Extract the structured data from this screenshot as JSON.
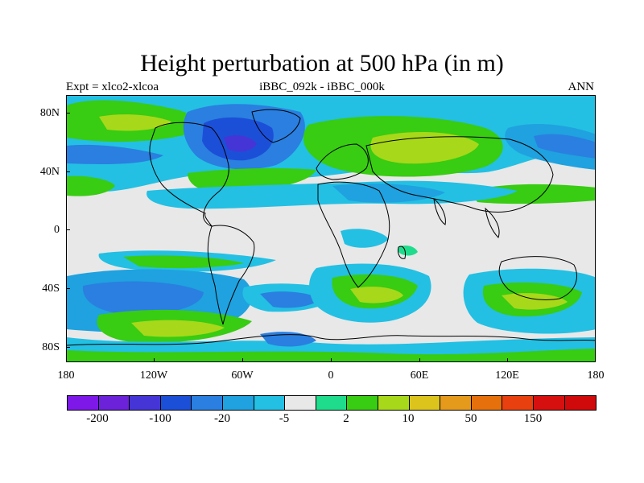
{
  "title": "Height perturbation at 500 hPa (in m)",
  "subtitle": {
    "left": "Expt = xlco2-xlcoa",
    "center": "iBBC_092k - iBBC_000k",
    "right": "ANN"
  },
  "axes": {
    "lat_labels": [
      "80N",
      "40N",
      "0",
      "40S",
      "80S"
    ],
    "lon_labels": [
      "180",
      "120W",
      "60W",
      "0",
      "60E",
      "120E",
      "180"
    ]
  },
  "colorbar": {
    "colors": [
      "#7d18e8",
      "#6b22d9",
      "#4535d6",
      "#1c4fd8",
      "#2a7fe0",
      "#1fa2df",
      "#23c0e3",
      "#e8e8e8",
      "#1fdc8c",
      "#38cc12",
      "#a8d81a",
      "#dcc41c",
      "#e69a1c",
      "#e6700c",
      "#e8400e",
      "#d6100e",
      "#d00a0a"
    ],
    "labels": [
      "-200",
      "-100",
      "-20",
      "-5",
      "2",
      "10",
      "50",
      "150"
    ]
  },
  "map_field": {
    "background_color": "#e8e8e8",
    "coastline_color": "#000000"
  }
}
